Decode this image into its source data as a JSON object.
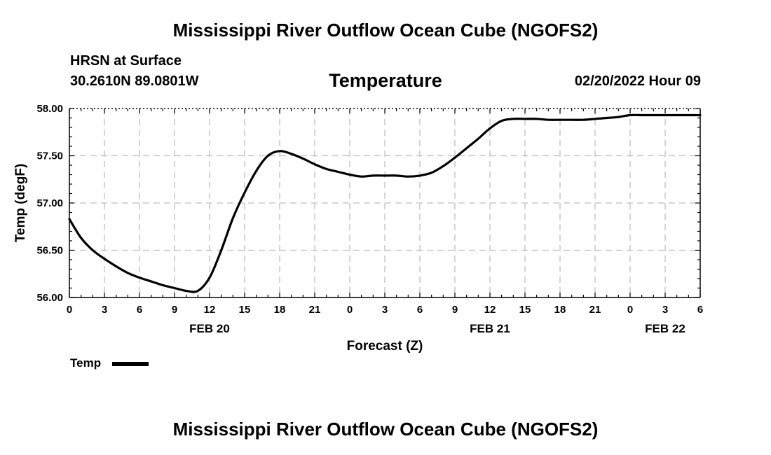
{
  "header": {
    "title": "Mississippi River Outflow Ocean Cube (NGOFS2)",
    "station_name": "HRSN at Surface",
    "station_coords": "30.2610N  89.0801W",
    "timestamp": "02/20/2022 Hour 09"
  },
  "footer": {
    "title": "Mississippi River Outflow Ocean Cube (NGOFS2)"
  },
  "legend": {
    "label": "Temp"
  },
  "colors": {
    "line": "#000000",
    "grid": "#c0c0c0"
  },
  "chart_data": {
    "type": "line",
    "title": "Temperature",
    "xlabel": "Forecast (Z)",
    "ylabel": "Temp (degF)",
    "xlim": [
      0,
      54
    ],
    "ylim": [
      56.0,
      58.0
    ],
    "grid": true,
    "y_ticks": [
      56.0,
      56.5,
      57.0,
      57.5,
      58.0
    ],
    "y_tick_labels": [
      "56.00",
      "56.50",
      "57.00",
      "57.50",
      "58.00"
    ],
    "x_ticks": [
      0,
      3,
      6,
      9,
      12,
      15,
      18,
      21,
      24,
      27,
      30,
      33,
      36,
      39,
      42,
      45,
      48,
      51,
      54
    ],
    "x_tick_labels": [
      "0",
      "3",
      "6",
      "9",
      "12",
      "15",
      "18",
      "21",
      "0",
      "3",
      "6",
      "9",
      "12",
      "15",
      "18",
      "21",
      "0",
      "3",
      "6"
    ],
    "date_labels": [
      {
        "x": 12,
        "label": "FEB 20"
      },
      {
        "x": 36,
        "label": "FEB 21"
      },
      {
        "x": 51,
        "label": "FEB 22"
      }
    ],
    "series": [
      {
        "name": "Temp",
        "x": [
          0,
          1,
          2,
          3,
          4,
          5,
          6,
          7,
          8,
          9,
          10,
          11,
          12,
          13,
          14,
          15,
          16,
          17,
          18,
          19,
          20,
          21,
          22,
          23,
          24,
          25,
          26,
          27,
          28,
          29,
          30,
          31,
          32,
          33,
          34,
          35,
          36,
          37,
          38,
          39,
          40,
          41,
          42,
          43,
          44,
          45,
          46,
          47,
          48,
          49,
          50,
          51,
          52,
          53,
          54
        ],
        "values": [
          56.83,
          56.63,
          56.5,
          56.41,
          56.33,
          56.26,
          56.21,
          56.17,
          56.13,
          56.1,
          56.07,
          56.07,
          56.21,
          56.5,
          56.84,
          57.11,
          57.34,
          57.5,
          57.55,
          57.52,
          57.47,
          57.41,
          57.36,
          57.33,
          57.3,
          57.28,
          57.29,
          57.29,
          57.29,
          57.28,
          57.29,
          57.32,
          57.39,
          57.48,
          57.58,
          57.68,
          57.79,
          57.87,
          57.89,
          57.89,
          57.89,
          57.88,
          57.88,
          57.88,
          57.88,
          57.89,
          57.9,
          57.91,
          57.93,
          57.93,
          57.93,
          57.93,
          57.93,
          57.93,
          57.93
        ]
      }
    ]
  }
}
